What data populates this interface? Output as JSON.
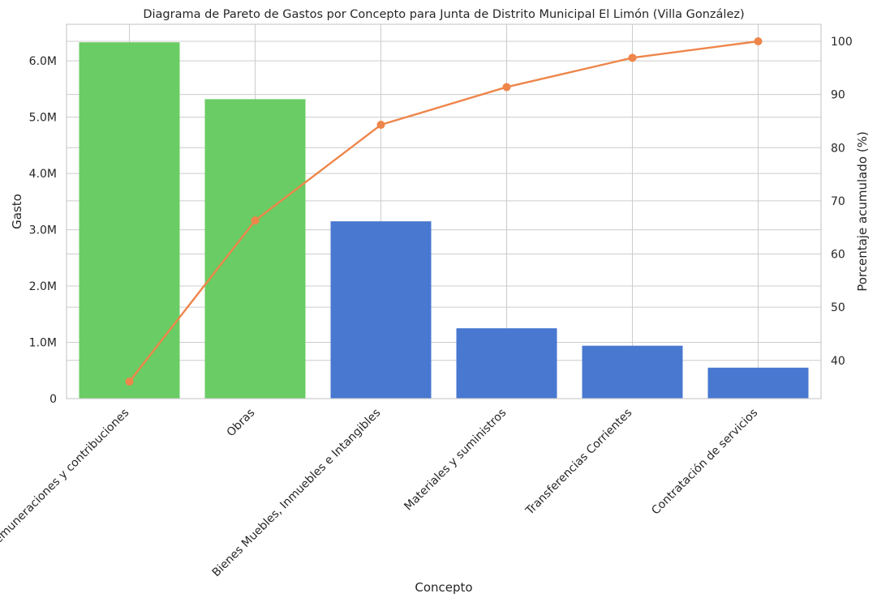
{
  "chart_data": {
    "type": "bar",
    "title": "Diagrama de Pareto de Gastos por Concepto para Junta de Distrito Municipal El Limón (Villa González)",
    "xlabel": "Concepto",
    "ylabel": "Gasto",
    "y2label": "Porcentaje acumulado (%)",
    "categories": [
      "Remuneraciones y contribuciones",
      "Obras",
      "Bienes Muebles, Inmuebles e Intangibles",
      "Materiales y suministros",
      "Transferencias Corrientes",
      "Contratación de servicios"
    ],
    "values": [
      6330000,
      5320000,
      3150000,
      1250000,
      940000,
      550000
    ],
    "bar_colors": [
      "#6acc64",
      "#6acc64",
      "#4878d0",
      "#4878d0",
      "#4878d0",
      "#4878d0"
    ],
    "cumulative_percent": [
      36.0,
      66.3,
      84.3,
      91.4,
      96.9,
      100.0
    ],
    "line_color": "#ee854a",
    "ylim": [
      0,
      6650000
    ],
    "y_ticks": [
      0,
      1000000,
      2000000,
      3000000,
      4000000,
      5000000,
      6000000
    ],
    "y_tick_labels": [
      "0",
      "1.0M",
      "2.0M",
      "3.0M",
      "4.0M",
      "5.0M",
      "6.0M"
    ],
    "y2lim": [
      32.8,
      103.2
    ],
    "y2_ticks": [
      40,
      50,
      60,
      70,
      80,
      90,
      100
    ],
    "y2_tick_labels": [
      "40",
      "50",
      "60",
      "70",
      "80",
      "90",
      "100"
    ],
    "grid": true
  }
}
